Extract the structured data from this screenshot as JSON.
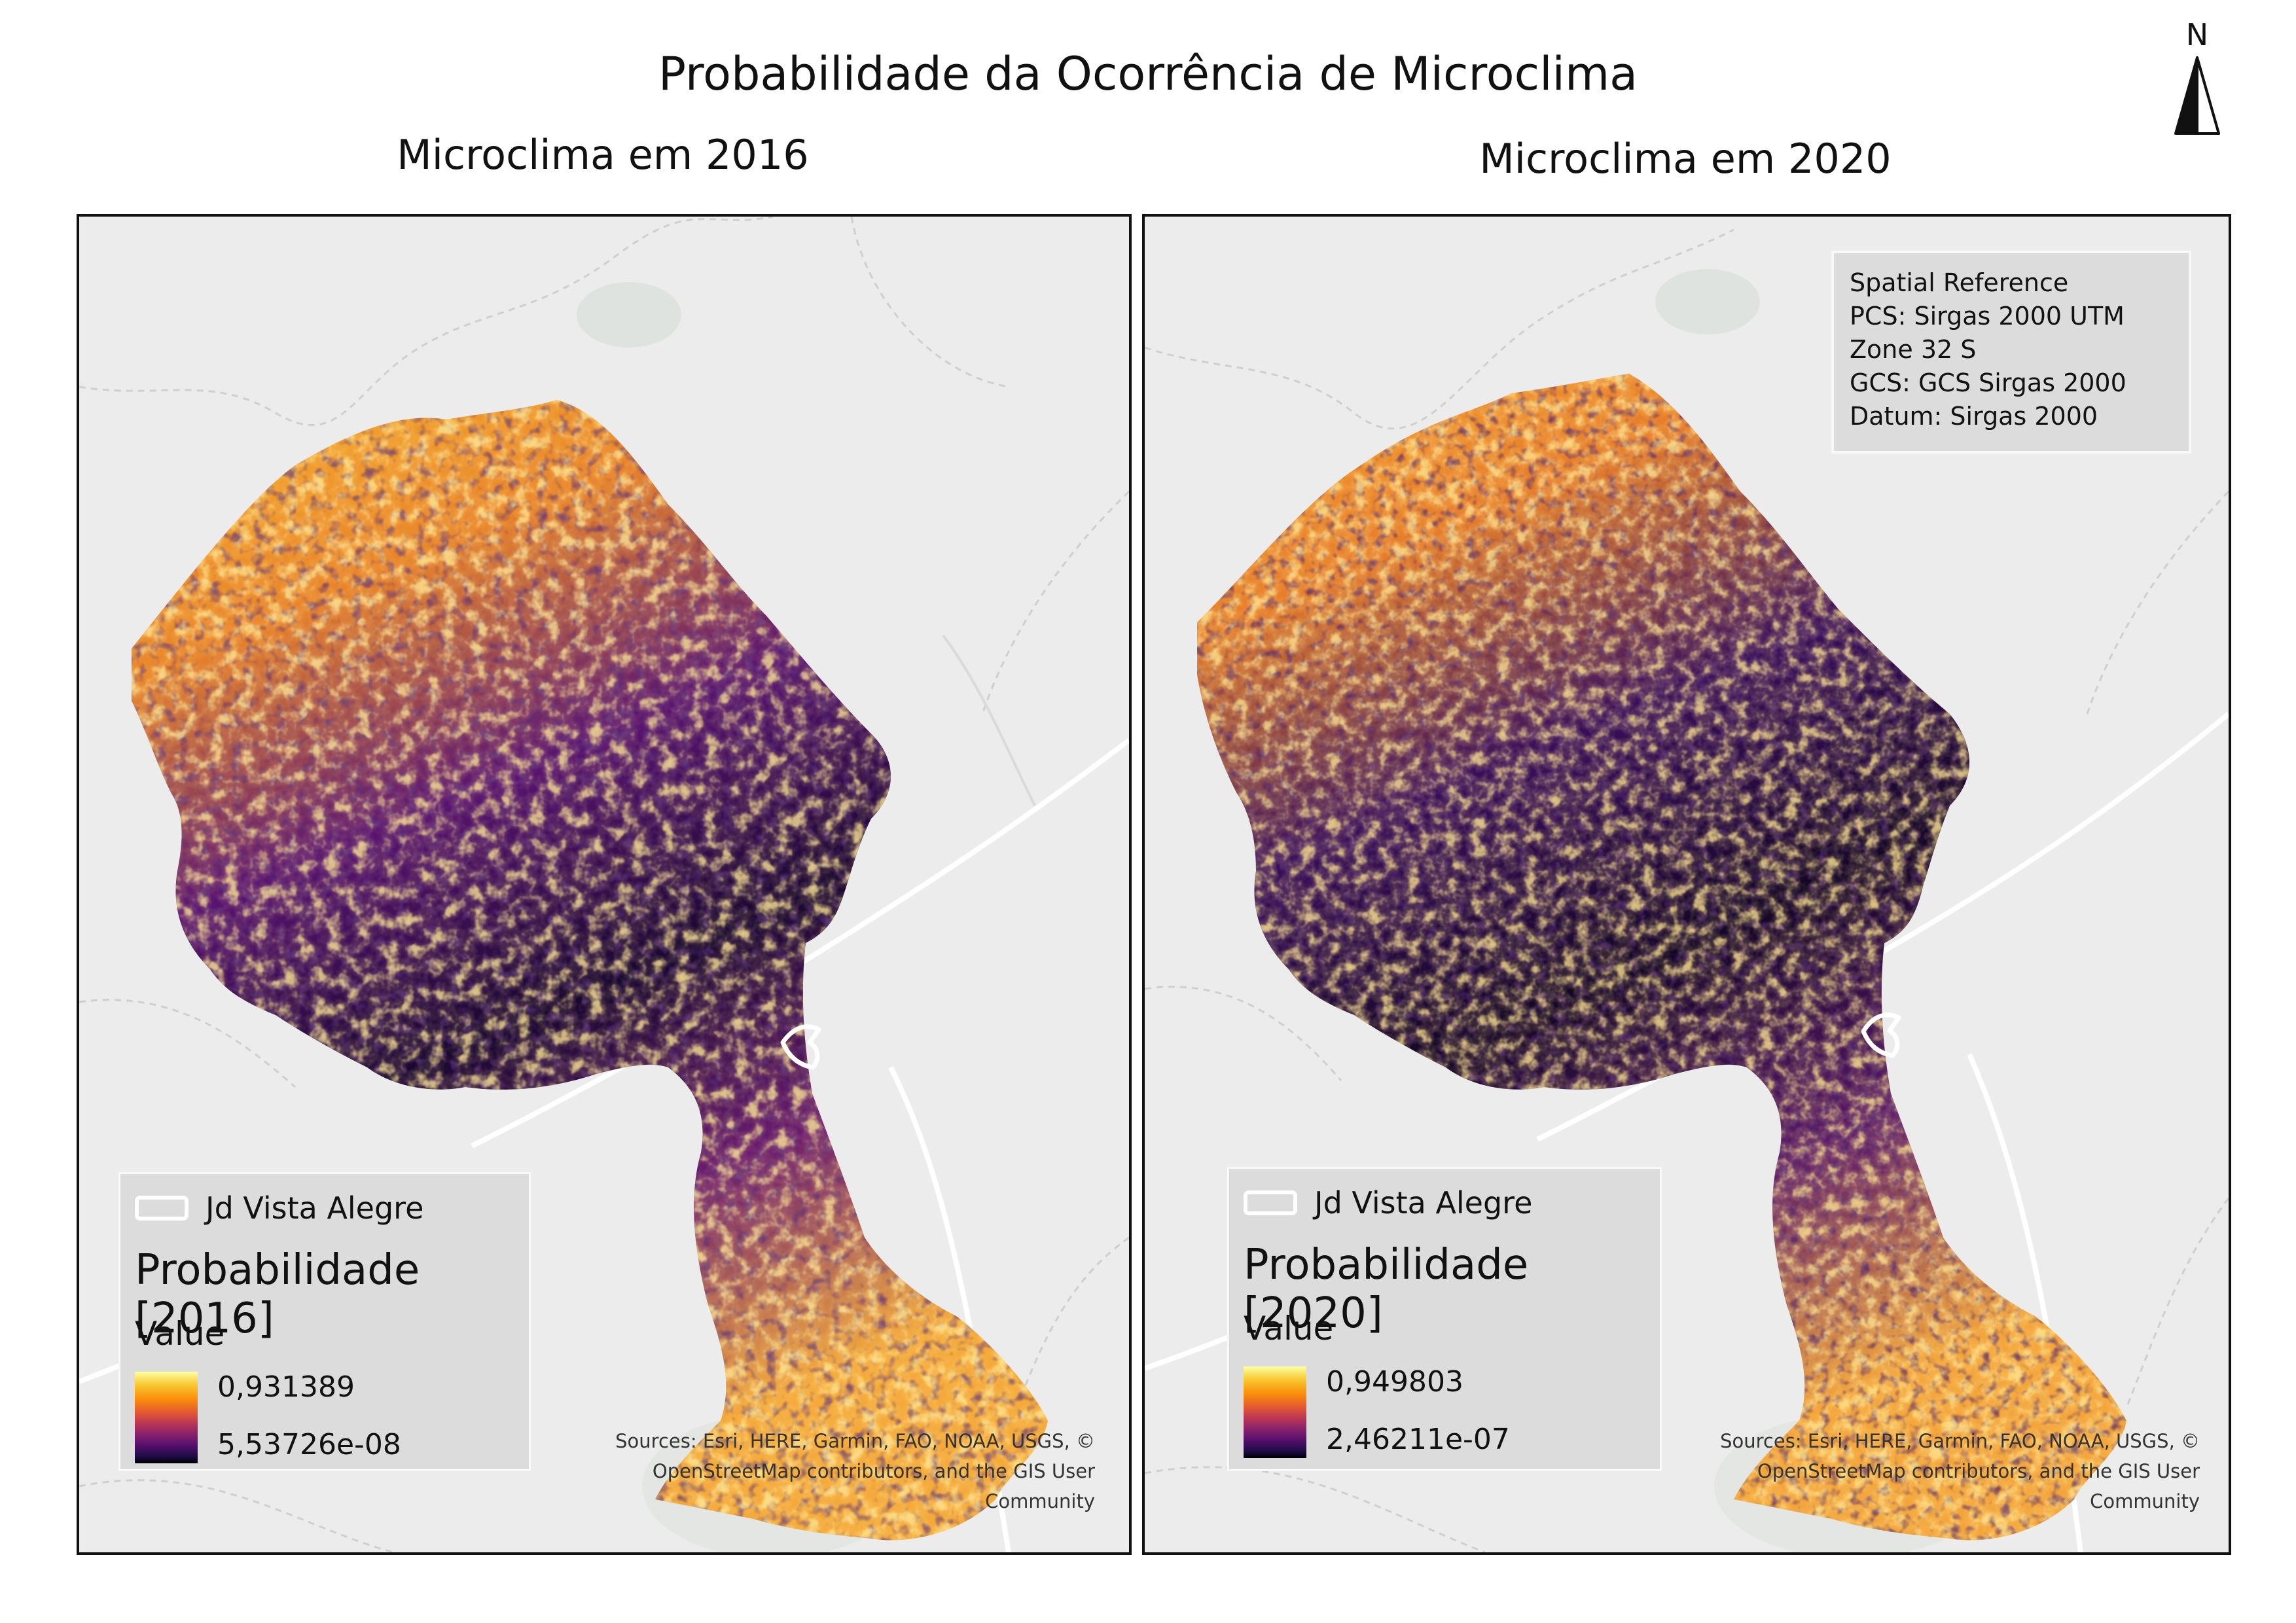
{
  "title": "Probabilidade da Ocorrência de Microclima",
  "north_arrow": {
    "letter": "N"
  },
  "maps": [
    {
      "subtitle": "Microclima em 2016",
      "legend": {
        "layer_label": "Jd Vista Alegre",
        "raster_title": "Probabilidade [2016]",
        "field_label": "Value",
        "max_value": "0,931389",
        "min_value": "5,53726e-08"
      },
      "credits": "Sources: Esri, HERE, Garmin, FAO, NOAA, USGS, © OpenStreetMap contributors, and the GIS User Community"
    },
    {
      "subtitle": "Microclima em 2020",
      "legend": {
        "layer_label": "Jd Vista Alegre",
        "raster_title": "Probabilidade [2020]",
        "field_label": "Value",
        "max_value": "0,949803",
        "min_value": "2,46211e-07"
      },
      "credits": "Sources: Esri, HERE, Garmin, FAO, NOAA, USGS, © OpenStreetMap contributors, and the GIS User Community",
      "spatial_reference": [
        "Spatial Reference",
        "PCS: Sirgas 2000 UTM",
        "Zone 32 S",
        "GCS: GCS Sirgas 2000",
        "Datum: Sirgas 2000"
      ]
    }
  ],
  "colors": {
    "basemap": "#ececed",
    "ramp_high": "#fcffa4",
    "ramp_mid": "#bc3754",
    "ramp_low": "#000004"
  }
}
